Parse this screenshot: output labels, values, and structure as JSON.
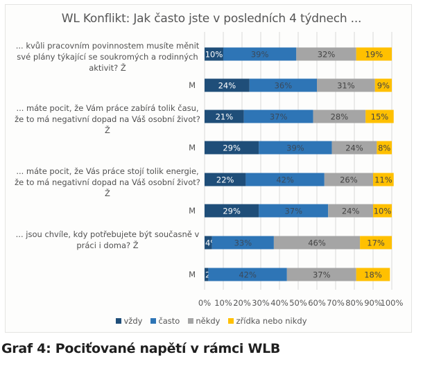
{
  "chart_data": {
    "type": "bar",
    "orientation": "horizontal",
    "stacked": true,
    "percent": true,
    "title": "WL Konflikt: Jak často jste v posledních 4 týdnech ...",
    "xlabel": "",
    "ylabel": "",
    "xlim": [
      0,
      100
    ],
    "grid": true,
    "legend_position": "bottom",
    "x_ticks": [
      "0%",
      "10%",
      "20%",
      "30%",
      "40%",
      "50%",
      "60%",
      "70%",
      "80%",
      "90%",
      "100%"
    ],
    "categories": [
      {
        "question": "... kvůli pracovním povinnostem musíte měnit své plány týkající se soukromých a rodinných aktivit? Ž",
        "group": "Ž"
      },
      {
        "question": "",
        "group": "M"
      },
      {
        "question": "... máte pocit, že Vám práce zabírá tolik času, že to má negativní dopad na Váš osobní život? Ž",
        "group": "Ž"
      },
      {
        "question": "",
        "group": "M"
      },
      {
        "question": "... máte pocit, že Vás práce stojí tolik energie, že to má negativní dopad na  Váš osobní život? Ž",
        "group": "Ž"
      },
      {
        "question": "",
        "group": "M"
      },
      {
        "question": "... jsou chvíle, kdy potřebujete být současně v práci i doma? Ž",
        "group": "Ž"
      },
      {
        "question": "",
        "group": "M"
      }
    ],
    "category_labels": [
      "... kvůli pracovním povinnostem musíte měnit své plány týkající se soukromých a rodinných aktivit? Ž",
      "M",
      "... máte pocit, že Vám práce zabírá tolik času, že to má negativní dopad na Váš osobní život? Ž",
      "M",
      "... máte pocit, že Vás práce stojí tolik energie, že to má negativní dopad na  Váš osobní život? Ž",
      "M",
      "... jsou chvíle, kdy potřebujete být současně v práci i doma? Ž",
      "M"
    ],
    "series": [
      {
        "name": "vždy",
        "color": "#1f4e79",
        "label_color": "#ffffff",
        "values": [
          10,
          24,
          21,
          29,
          22,
          29,
          4,
          2
        ]
      },
      {
        "name": "často",
        "color": "#2e75b6",
        "label_color": "#3a4a5c",
        "values": [
          39,
          36,
          37,
          39,
          42,
          37,
          33,
          42
        ]
      },
      {
        "name": "někdy",
        "color": "#a5a5a5",
        "label_color": "#444444",
        "values": [
          32,
          31,
          28,
          24,
          26,
          24,
          46,
          37
        ]
      },
      {
        "name": "zřídka nebo nikdy",
        "color": "#ffc000",
        "label_color": "#444444",
        "values": [
          19,
          9,
          15,
          8,
          11,
          10,
          17,
          18
        ]
      }
    ]
  },
  "caption": "Graf 4: Pociťované napětí v rámci WLB"
}
